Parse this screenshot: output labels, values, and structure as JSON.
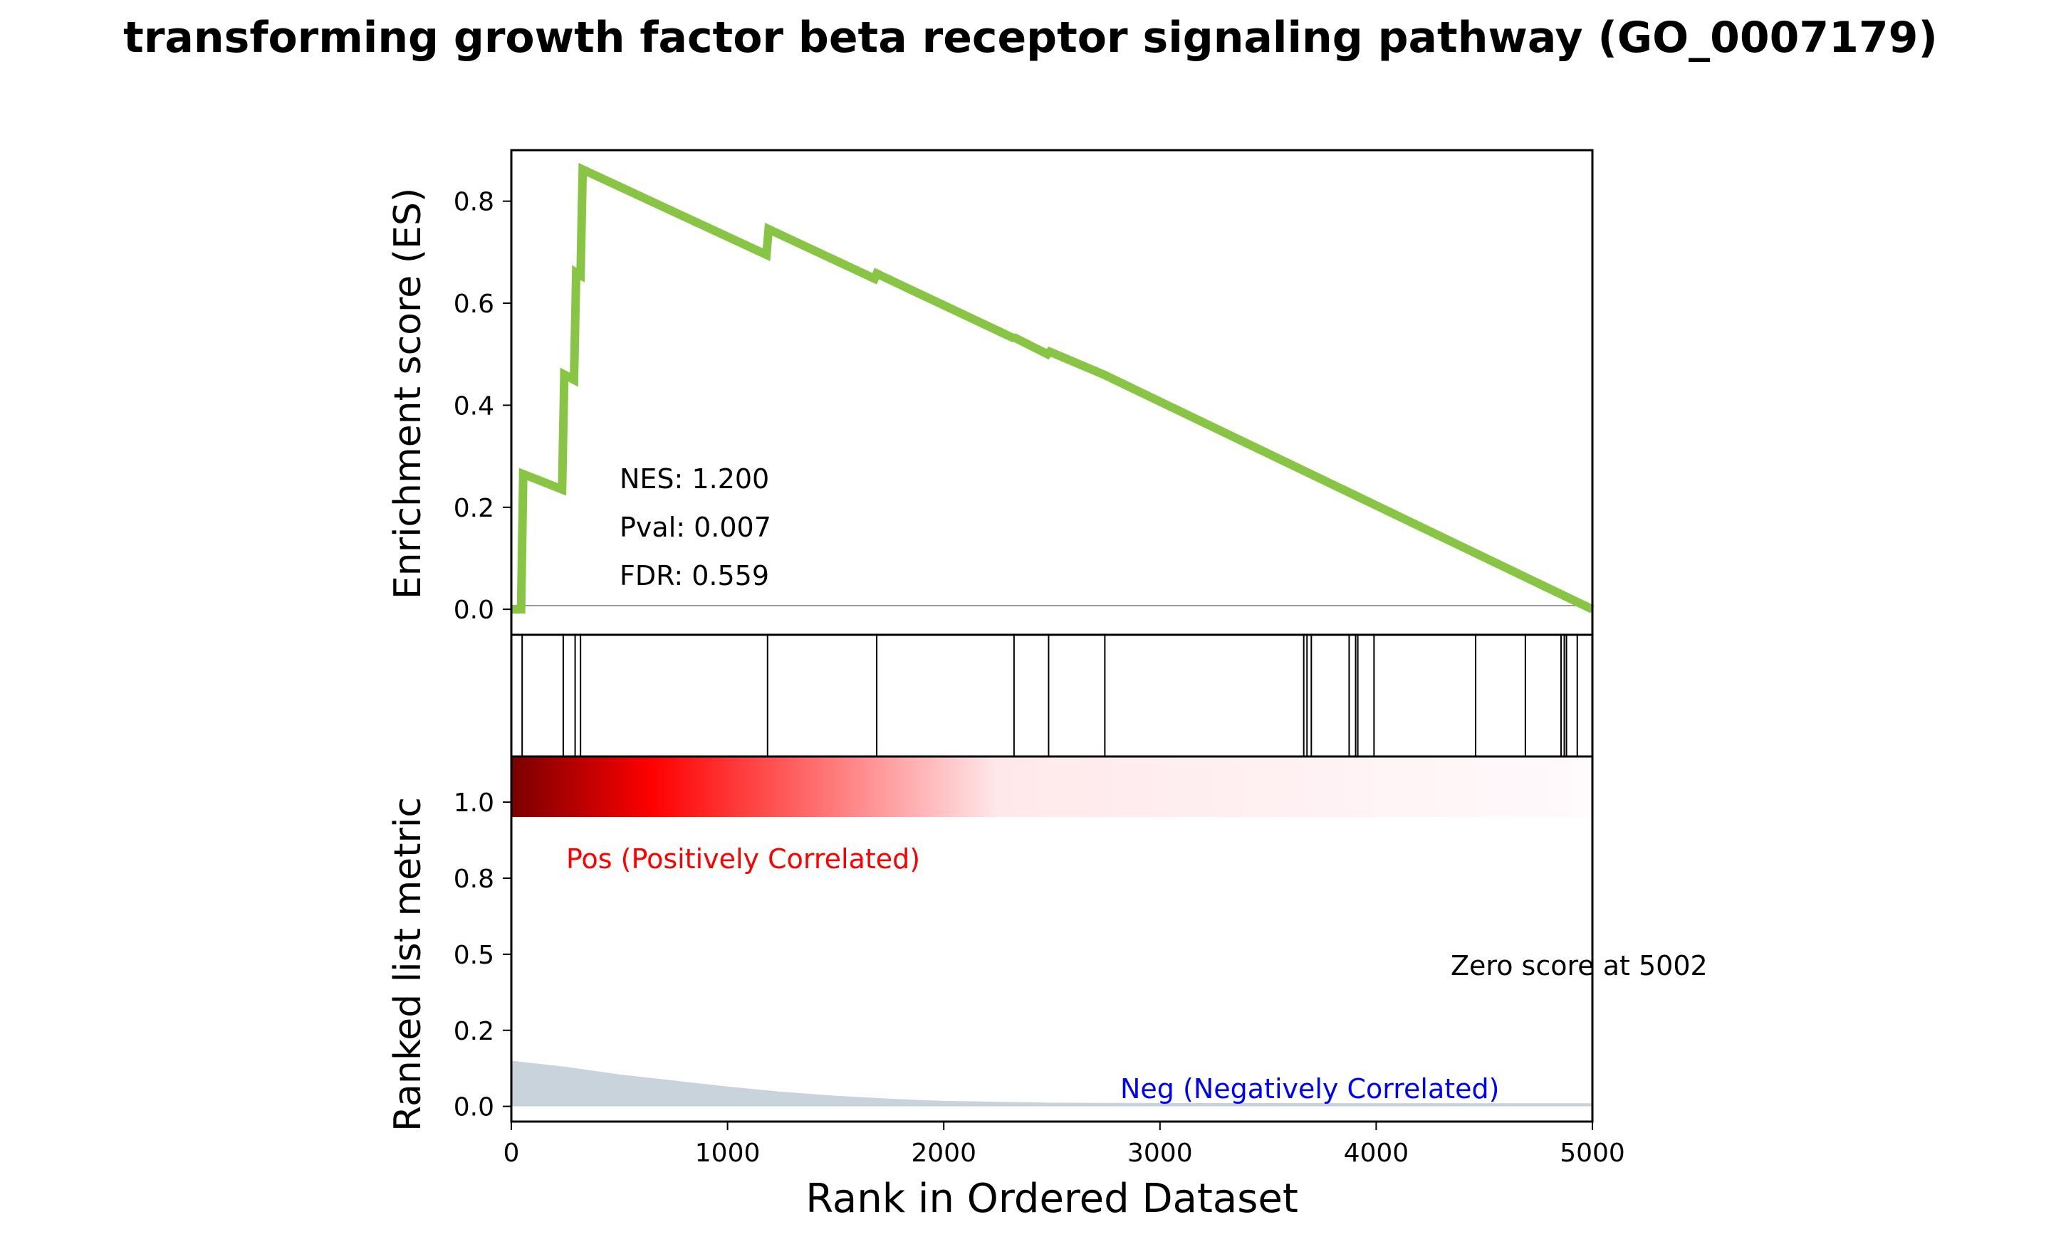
{
  "chart_data": {
    "type": "line",
    "title": "transforming growth factor beta receptor signaling pathway (GO_0007179)",
    "xlabel": "Rank in Ordered Dataset",
    "xlim": [
      0,
      5000
    ],
    "x_ticks": [
      0,
      1000,
      2000,
      3000,
      4000,
      5000
    ],
    "es_panel": {
      "ylabel": "Enrichment score (ES)",
      "ylim": [
        -0.05,
        0.9
      ],
      "y_ticks": [
        "0.0",
        "0.2",
        "0.4",
        "0.6",
        "0.8"
      ],
      "line_color": "#88c544",
      "stats": [
        "NES: 1.200",
        "Pval: 0.007",
        "FDR: 0.559"
      ],
      "points": [
        [
          0,
          0.0
        ],
        [
          45,
          0.0
        ],
        [
          55,
          0.265
        ],
        [
          235,
          0.235
        ],
        [
          245,
          0.46
        ],
        [
          290,
          0.45
        ],
        [
          300,
          0.66
        ],
        [
          320,
          0.655
        ],
        [
          330,
          0.862
        ],
        [
          1180,
          0.695
        ],
        [
          1190,
          0.745
        ],
        [
          1680,
          0.648
        ],
        [
          1690,
          0.658
        ],
        [
          2320,
          0.532
        ],
        [
          2330,
          0.532
        ],
        [
          2480,
          0.5
        ],
        [
          2490,
          0.505
        ],
        [
          2740,
          0.46
        ],
        [
          5000,
          0.0
        ]
      ]
    },
    "hit_positions": [
      50,
      240,
      295,
      320,
      1185,
      1690,
      2325,
      2485,
      2745,
      3665,
      3680,
      3700,
      3875,
      3905,
      3915,
      3990,
      4460,
      4690,
      4855,
      4870,
      4880,
      4930
    ],
    "ranked_panel": {
      "ylabel": "Ranked list metric",
      "ylim": [
        -0.05,
        1.15
      ],
      "y_ticks": [
        "0.0",
        "0.2",
        "0.5",
        "0.8",
        "1.0"
      ],
      "fill_color": "#c8d3dc",
      "pos_label": "Pos (Positively Correlated)",
      "neg_label": "Neg (Negatively Correlated)",
      "pos_color": "#ff0000",
      "neg_color": "#0000ff",
      "zero_score_label": "Zero score at 5002",
      "metric_points": [
        [
          0,
          0.15
        ],
        [
          250,
          0.13
        ],
        [
          500,
          0.105
        ],
        [
          750,
          0.085
        ],
        [
          1000,
          0.065
        ],
        [
          1250,
          0.048
        ],
        [
          1500,
          0.035
        ],
        [
          1750,
          0.025
        ],
        [
          2000,
          0.018
        ],
        [
          2500,
          0.012
        ],
        [
          3000,
          0.011
        ],
        [
          5000,
          0.01
        ]
      ]
    },
    "heatmap_colors": [
      "#7a0000",
      "#ff0000",
      "#ffffff"
    ]
  }
}
